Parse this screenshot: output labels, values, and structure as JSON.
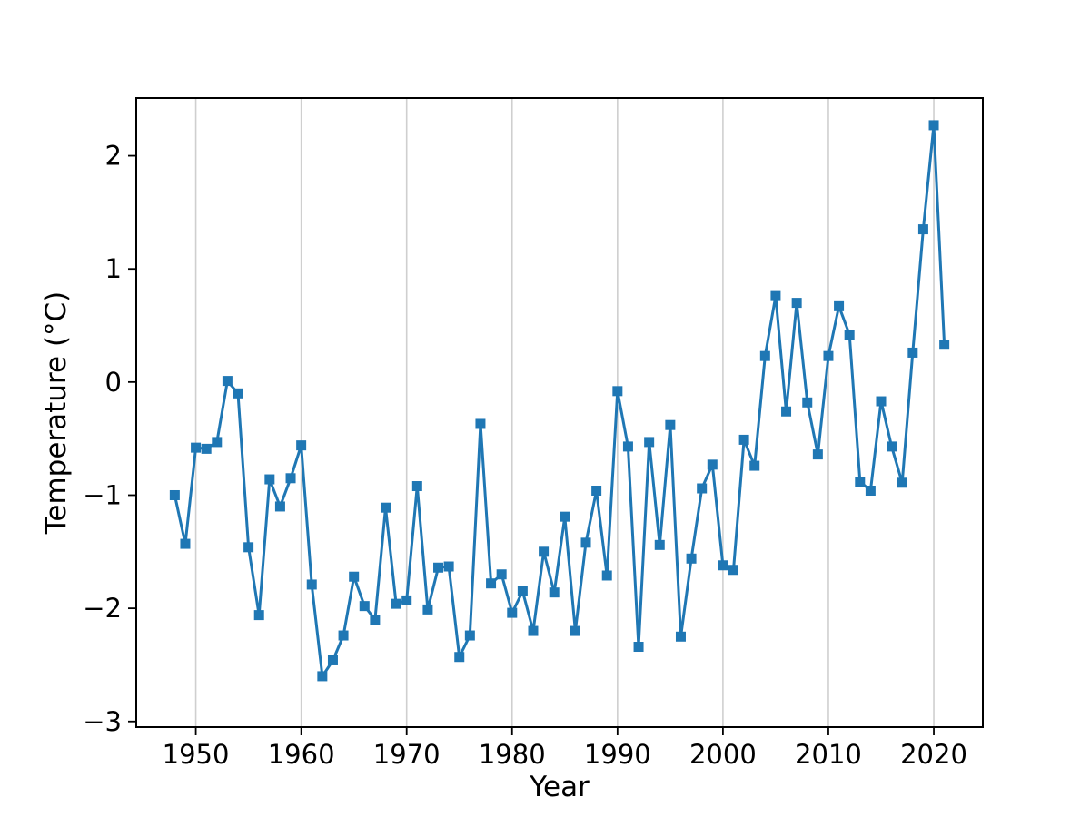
{
  "chart_data": {
    "type": "line",
    "title": "",
    "xlabel": "Year",
    "ylabel": "Temperature (°C)",
    "x": [
      1948,
      1949,
      1950,
      1951,
      1952,
      1953,
      1954,
      1955,
      1956,
      1957,
      1958,
      1959,
      1960,
      1961,
      1962,
      1963,
      1964,
      1965,
      1966,
      1967,
      1968,
      1969,
      1970,
      1971,
      1972,
      1973,
      1974,
      1975,
      1976,
      1977,
      1978,
      1979,
      1980,
      1981,
      1982,
      1983,
      1984,
      1985,
      1986,
      1987,
      1988,
      1989,
      1990,
      1991,
      1992,
      1993,
      1994,
      1995,
      1996,
      1997,
      1998,
      1999,
      2000,
      2001,
      2002,
      2003,
      2004,
      2005,
      2006,
      2007,
      2008,
      2009,
      2010,
      2011,
      2012,
      2013,
      2014,
      2015,
      2016,
      2017,
      2018,
      2019,
      2020,
      2021
    ],
    "series": [
      {
        "name": "temperature",
        "values": [
          -1.0,
          -1.43,
          -0.58,
          -0.59,
          -0.53,
          0.01,
          -0.1,
          -1.46,
          -2.06,
          -0.86,
          -1.1,
          -0.85,
          -0.56,
          -1.79,
          -2.6,
          -2.46,
          -2.24,
          -1.72,
          -1.98,
          -2.1,
          -1.11,
          -1.96,
          -1.93,
          -0.92,
          -2.01,
          -1.64,
          -1.63,
          -2.43,
          -2.24,
          -0.37,
          -1.78,
          -1.7,
          -2.04,
          -1.85,
          -2.2,
          -1.5,
          -1.86,
          -1.19,
          -2.2,
          -1.42,
          -0.96,
          -1.71,
          -0.08,
          -0.57,
          -2.34,
          -0.53,
          -1.44,
          -0.38,
          -2.25,
          -1.56,
          -0.94,
          -0.73,
          -1.62,
          -1.66,
          -0.51,
          -0.74,
          0.23,
          0.76,
          -0.26,
          0.7,
          -0.18,
          -0.64,
          0.23,
          0.67,
          0.42,
          -0.88,
          -0.96,
          -0.17,
          -0.57,
          -0.89,
          0.26,
          1.35,
          2.27,
          0.33
        ]
      }
    ],
    "xlim": [
      1944.35,
      2024.65
    ],
    "ylim": [
      -3.05,
      2.51
    ],
    "xticks": [
      1950,
      1960,
      1970,
      1980,
      1990,
      2000,
      2010,
      2020
    ],
    "xtick_labels": [
      "1950",
      "1960",
      "1970",
      "1980",
      "1990",
      "2000",
      "2010",
      "2020"
    ],
    "yticks": [
      -3,
      -2,
      -1,
      0,
      1,
      2
    ],
    "ytick_labels": [
      "−3",
      "−2",
      "−1",
      "0",
      "1",
      "2"
    ],
    "grid": "vertical-only",
    "grid_color": "#cfcfcf",
    "line_color": "#1f77b4",
    "marker": "square",
    "marker_color": "#1f77b4",
    "spine_color": "#000000",
    "legend": "none",
    "background": "#ffffff"
  }
}
